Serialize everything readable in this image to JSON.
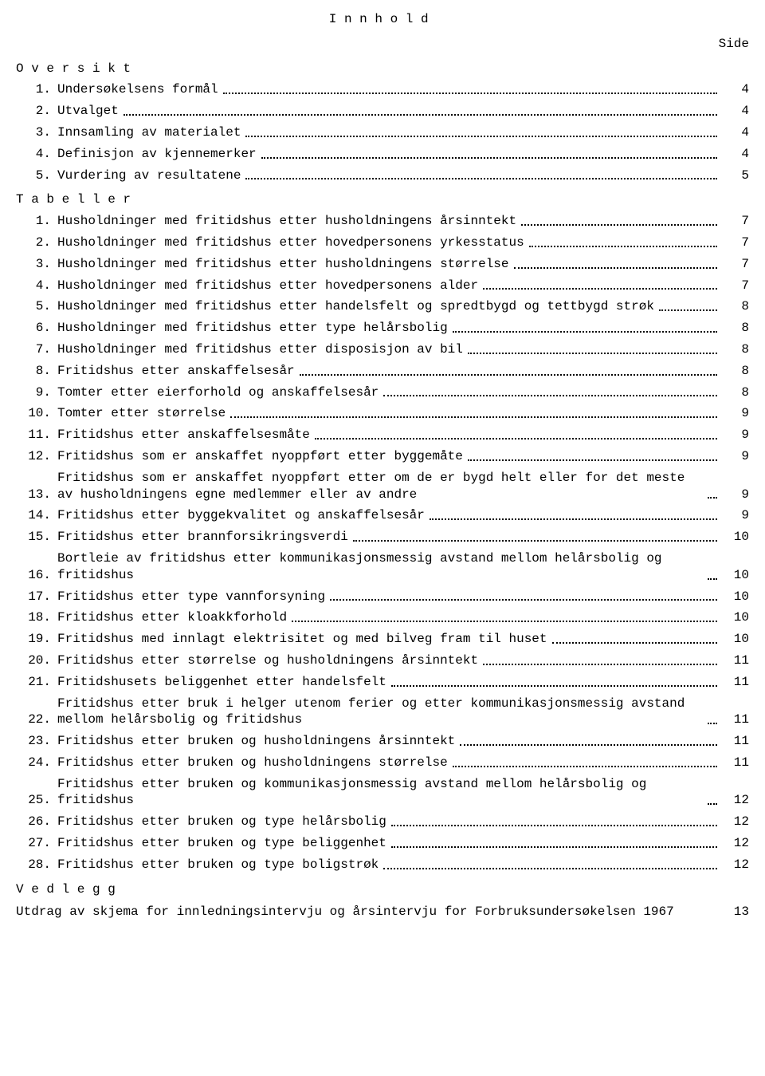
{
  "title": "Innhold",
  "side_label": "Side",
  "sections": [
    {
      "heading": "Oversikt",
      "items": [
        {
          "num": "1.",
          "text": "Undersøkelsens formål",
          "page": "4"
        },
        {
          "num": "2.",
          "text": "Utvalget",
          "page": "4"
        },
        {
          "num": "3.",
          "text": "Innsamling av materialet",
          "page": "4"
        },
        {
          "num": "4.",
          "text": "Definisjon av kjennemerker",
          "page": "4"
        },
        {
          "num": "5.",
          "text": "Vurdering av resultatene",
          "page": "5"
        }
      ]
    },
    {
      "heading": "Tabeller",
      "items": [
        {
          "num": "1.",
          "text": "Husholdninger med fritidshus etter husholdningens årsinntekt",
          "page": "7"
        },
        {
          "num": "2.",
          "text": "Husholdninger med fritidshus etter hovedpersonens yrkesstatus",
          "page": "7"
        },
        {
          "num": "3.",
          "text": "Husholdninger med fritidshus etter husholdningens størrelse",
          "page": "7"
        },
        {
          "num": "4.",
          "text": "Husholdninger med fritidshus etter hovedpersonens alder",
          "page": "7"
        },
        {
          "num": "5.",
          "text": "Husholdninger med fritidshus etter handelsfelt og spredtbygd og tettbygd strøk",
          "page": "8"
        },
        {
          "num": "6.",
          "text": "Husholdninger med fritidshus etter type helårsbolig",
          "page": "8"
        },
        {
          "num": "7.",
          "text": "Husholdninger med fritidshus etter disposisjon av bil",
          "page": "8"
        },
        {
          "num": "8.",
          "text": "Fritidshus etter anskaffelsesår",
          "page": "8"
        },
        {
          "num": "9.",
          "text": "Tomter etter eierforhold og anskaffelsesår",
          "page": "8"
        },
        {
          "num": "10.",
          "text": "Tomter etter størrelse",
          "page": "9"
        },
        {
          "num": "11.",
          "text": "Fritidshus etter anskaffelsesmåte",
          "page": "9"
        },
        {
          "num": "12.",
          "text": "Fritidshus som er anskaffet nyoppført etter byggemåte",
          "page": "9"
        },
        {
          "num": "13.",
          "text": "Fritidshus som er anskaffet nyoppført etter om de er bygd helt eller for det meste av husholdningens egne medlemmer eller av andre",
          "page": "9"
        },
        {
          "num": "14.",
          "text": "Fritidshus etter byggekvalitet og anskaffelsesår",
          "page": "9"
        },
        {
          "num": "15.",
          "text": "Fritidshus etter brannforsikringsverdi",
          "page": "10"
        },
        {
          "num": "16.",
          "text": "Bortleie av fritidshus etter kommunikasjonsmessig avstand mellom helårsbolig og fritidshus",
          "page": "10"
        },
        {
          "num": "17.",
          "text": "Fritidshus etter type vannforsyning",
          "page": "10"
        },
        {
          "num": "18.",
          "text": "Fritidshus etter kloakkforhold",
          "page": "10"
        },
        {
          "num": "19.",
          "text": "Fritidshus med innlagt elektrisitet og med bilveg fram til huset",
          "page": "10"
        },
        {
          "num": "20.",
          "text": "Fritidshus etter størrelse og husholdningens årsinntekt",
          "page": "11"
        },
        {
          "num": "21.",
          "text": "Fritidshusets beliggenhet etter handelsfelt",
          "page": "11"
        },
        {
          "num": "22.",
          "text": "Fritidshus etter bruk i helger utenom ferier og etter kommunikasjonsmessig avstand mellom helårsbolig og fritidshus",
          "page": "11"
        },
        {
          "num": "23.",
          "text": "Fritidshus etter bruken og husholdningens årsinntekt",
          "page": "11"
        },
        {
          "num": "24.",
          "text": "Fritidshus etter bruken og husholdningens størrelse",
          "page": "11"
        },
        {
          "num": "25.",
          "text": "Fritidshus etter bruken og kommunikasjonsmessig avstand mellom helårsbolig og fritidshus",
          "page": "12"
        },
        {
          "num": "26.",
          "text": "Fritidshus etter bruken og type helårsbolig",
          "page": "12"
        },
        {
          "num": "27.",
          "text": "Fritidshus etter bruken og type beliggenhet",
          "page": "12"
        },
        {
          "num": "28.",
          "text": "Fritidshus etter bruken og type boligstrøk",
          "page": "12"
        }
      ]
    }
  ],
  "appendix_heading": "Vedlegg",
  "appendix_text": "Utdrag av skjema for innledningsintervju og årsintervju for Forbruksundersøkelsen 1967",
  "appendix_page": "13"
}
